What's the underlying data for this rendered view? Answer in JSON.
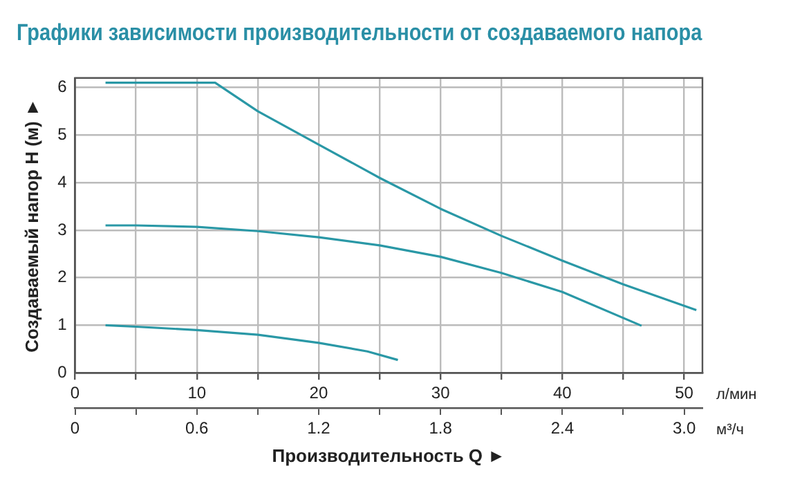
{
  "chart_data": {
    "type": "line",
    "title": "Графики зависимости производительности от создаваемого напора",
    "xlabel": "Производительность Q ►",
    "ylabel": "Создаваемый напор H (м) ►",
    "annotations": [
      "л/мин",
      "м³/ч"
    ],
    "series": [
      {
        "color": "#2a98a6",
        "x": [
          2.5,
          11.5,
          15,
          20,
          25,
          30,
          35,
          40,
          45,
          51
        ],
        "values": [
          6.1,
          6.1,
          5.5,
          4.8,
          4.1,
          3.45,
          2.88,
          2.36,
          1.86,
          1.32
        ]
      },
      {
        "color": "#2a98a6",
        "x": [
          2.5,
          5,
          10,
          15,
          20,
          25,
          30,
          35,
          40,
          46.5
        ],
        "values": [
          3.1,
          3.1,
          3.07,
          2.98,
          2.85,
          2.68,
          2.44,
          2.1,
          1.7,
          0.99
        ]
      },
      {
        "color": "#2a98a6",
        "x": [
          2.5,
          5,
          10,
          15,
          20,
          24,
          26.5
        ],
        "values": [
          1.0,
          0.97,
          0.9,
          0.8,
          0.63,
          0.45,
          0.27
        ]
      }
    ],
    "xlim": [
      0,
      51.5
    ],
    "xticks": [
      0,
      {
        "value": 5,
        "label": null
      },
      10,
      {
        "value": 15,
        "label": null
      },
      20,
      {
        "value": 25,
        "label": null
      },
      30,
      {
        "value": 35,
        "label": null
      },
      40,
      {
        "value": 45,
        "label": null
      },
      50
    ],
    "x2lim": [
      0,
      3.09
    ],
    "x2ticks": [
      0,
      {
        "value": 0.3,
        "label": null
      },
      0.6,
      {
        "value": 0.9,
        "label": null
      },
      1.2,
      {
        "value": 1.5,
        "label": null
      },
      1.8,
      {
        "value": 2.1,
        "label": null
      },
      2.4,
      {
        "value": 2.7,
        "label": null
      },
      {
        "value": 3,
        "label": "3.0"
      }
    ],
    "ylim": [
      0,
      6.2
    ],
    "yticks": [
      0,
      1,
      2,
      3,
      4,
      5,
      6
    ],
    "grid": true,
    "legend": false,
    "marker": "none",
    "line_style": "solid"
  }
}
